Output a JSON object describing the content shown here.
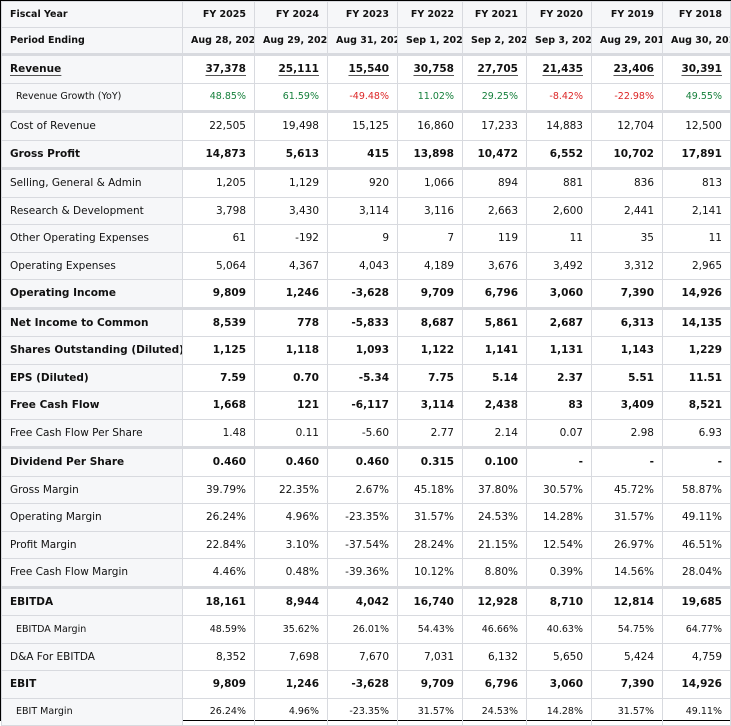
{
  "header": {
    "fiscal_year_label": "Fiscal Year",
    "period_ending_label": "Period Ending",
    "years": [
      "FY 2025",
      "FY 2024",
      "FY 2023",
      "FY 2022",
      "FY 2021",
      "FY 2020",
      "FY 2019",
      "FY 2018"
    ],
    "periods": [
      "Aug 28, 2025",
      "Aug 29, 2024",
      "Aug 31, 2023",
      "Sep 1, 2022",
      "Sep 2, 2021",
      "Sep 3, 2020",
      "Aug 29, 2019",
      "Aug 30, 2018"
    ]
  },
  "colors": {
    "positive": "#16803c",
    "negative": "#dc2626"
  },
  "rows": [
    {
      "label": "Revenue",
      "style": "bold link",
      "values": [
        "37,378",
        "25,111",
        "15,540",
        "30,758",
        "27,705",
        "21,435",
        "23,406",
        "30,391"
      ]
    },
    {
      "label": "Revenue Growth (YoY)",
      "style": "sub colored",
      "values": [
        "48.85%",
        "61.59%",
        "-49.48%",
        "11.02%",
        "29.25%",
        "-8.42%",
        "-22.98%",
        "49.55%"
      ]
    },
    {
      "label": "Cost of Revenue",
      "style": "sep",
      "values": [
        "22,505",
        "19,498",
        "15,125",
        "16,860",
        "17,233",
        "14,883",
        "12,704",
        "12,500"
      ]
    },
    {
      "label": "Gross Profit",
      "style": "bold",
      "values": [
        "14,873",
        "5,613",
        "415",
        "13,898",
        "10,472",
        "6,552",
        "10,702",
        "17,891"
      ]
    },
    {
      "label": "Selling, General & Admin",
      "style": "sep",
      "values": [
        "1,205",
        "1,129",
        "920",
        "1,066",
        "894",
        "881",
        "836",
        "813"
      ]
    },
    {
      "label": "Research & Development",
      "style": "",
      "values": [
        "3,798",
        "3,430",
        "3,114",
        "3,116",
        "2,663",
        "2,600",
        "2,441",
        "2,141"
      ]
    },
    {
      "label": "Other Operating Expenses",
      "style": "",
      "values": [
        "61",
        "-192",
        "9",
        "7",
        "119",
        "11",
        "35",
        "11"
      ]
    },
    {
      "label": "Operating Expenses",
      "style": "",
      "values": [
        "5,064",
        "4,367",
        "4,043",
        "4,189",
        "3,676",
        "3,492",
        "3,312",
        "2,965"
      ]
    },
    {
      "label": "Operating Income",
      "style": "bold",
      "values": [
        "9,809",
        "1,246",
        "-3,628",
        "9,709",
        "6,796",
        "3,060",
        "7,390",
        "14,926"
      ]
    },
    {
      "label": "Net Income to Common",
      "style": "sep bold",
      "values": [
        "8,539",
        "778",
        "-5,833",
        "8,687",
        "5,861",
        "2,687",
        "6,313",
        "14,135"
      ]
    },
    {
      "label": "Shares Outstanding (Diluted)",
      "style": "bold",
      "values": [
        "1,125",
        "1,118",
        "1,093",
        "1,122",
        "1,141",
        "1,131",
        "1,143",
        "1,229"
      ]
    },
    {
      "label": "EPS (Diluted)",
      "style": "bold",
      "values": [
        "7.59",
        "0.70",
        "-5.34",
        "7.75",
        "5.14",
        "2.37",
        "5.51",
        "11.51"
      ]
    },
    {
      "label": "Free Cash Flow",
      "style": "bold",
      "values": [
        "1,668",
        "121",
        "-6,117",
        "3,114",
        "2,438",
        "83",
        "3,409",
        "8,521"
      ]
    },
    {
      "label": "Free Cash Flow Per Share",
      "style": "",
      "values": [
        "1.48",
        "0.11",
        "-5.60",
        "2.77",
        "2.14",
        "0.07",
        "2.98",
        "6.93"
      ]
    },
    {
      "label": "Dividend Per Share",
      "style": "sep bold",
      "values": [
        "0.460",
        "0.460",
        "0.460",
        "0.315",
        "0.100",
        "-",
        "-",
        "-"
      ]
    },
    {
      "label": "Gross Margin",
      "style": "",
      "values": [
        "39.79%",
        "22.35%",
        "2.67%",
        "45.18%",
        "37.80%",
        "30.57%",
        "45.72%",
        "58.87%"
      ]
    },
    {
      "label": "Operating Margin",
      "style": "",
      "values": [
        "26.24%",
        "4.96%",
        "-23.35%",
        "31.57%",
        "24.53%",
        "14.28%",
        "31.57%",
        "49.11%"
      ]
    },
    {
      "label": "Profit Margin",
      "style": "",
      "values": [
        "22.84%",
        "3.10%",
        "-37.54%",
        "28.24%",
        "21.15%",
        "12.54%",
        "26.97%",
        "46.51%"
      ]
    },
    {
      "label": "Free Cash Flow Margin",
      "style": "",
      "values": [
        "4.46%",
        "0.48%",
        "-39.36%",
        "10.12%",
        "8.80%",
        "0.39%",
        "14.56%",
        "28.04%"
      ]
    },
    {
      "label": "EBITDA",
      "style": "sep bold",
      "values": [
        "18,161",
        "8,944",
        "4,042",
        "16,740",
        "12,928",
        "8,710",
        "12,814",
        "19,685"
      ]
    },
    {
      "label": "EBITDA Margin",
      "style": "sub",
      "values": [
        "48.59%",
        "35.62%",
        "26.01%",
        "54.43%",
        "46.66%",
        "40.63%",
        "54.75%",
        "64.77%"
      ]
    },
    {
      "label": "D&A For EBITDA",
      "style": "",
      "values": [
        "8,352",
        "7,698",
        "7,670",
        "7,031",
        "6,132",
        "5,650",
        "5,424",
        "4,759"
      ]
    },
    {
      "label": "EBIT",
      "style": "bold",
      "values": [
        "9,809",
        "1,246",
        "-3,628",
        "9,709",
        "6,796",
        "3,060",
        "7,390",
        "14,926"
      ]
    },
    {
      "label": "EBIT Margin",
      "style": "sub",
      "values": [
        "26.24%",
        "4.96%",
        "-23.35%",
        "31.57%",
        "24.53%",
        "14.28%",
        "31.57%",
        "49.11%"
      ]
    }
  ]
}
